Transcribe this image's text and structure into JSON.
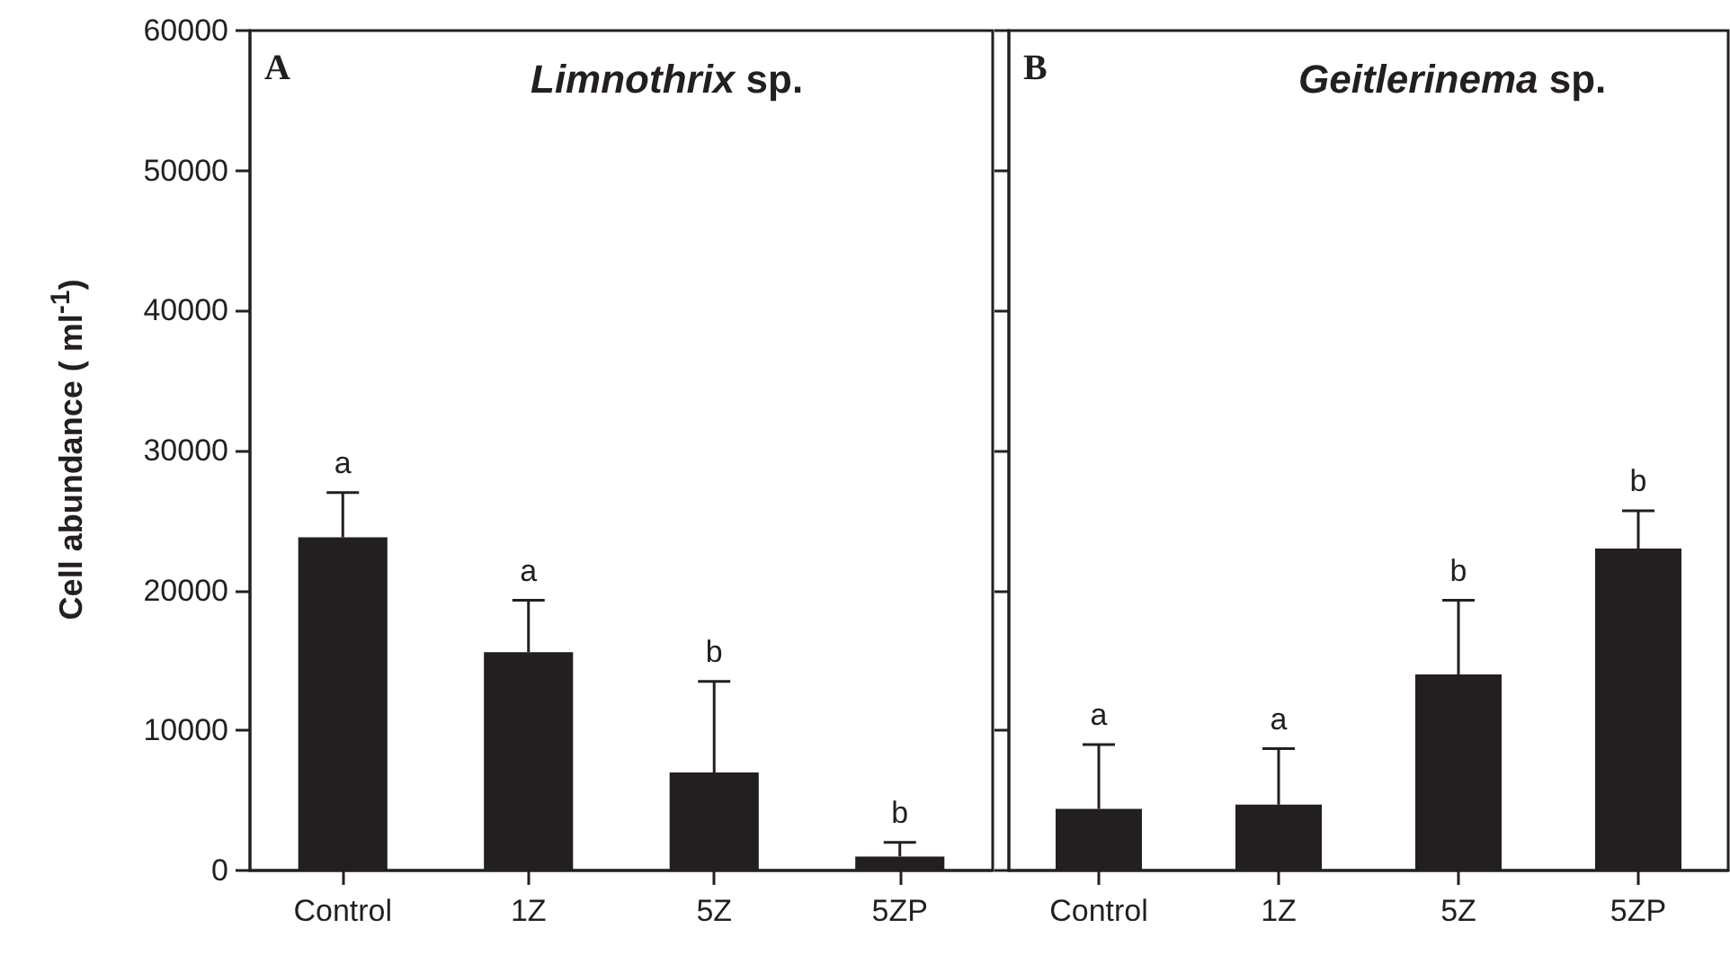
{
  "chart_data": [
    {
      "type": "bar",
      "title": "Limnothrix sp.",
      "ylabel": "Cell abundance ( ml$^{-1}$)",
      "categories": [
        "Control",
        "1Z",
        "5Z",
        "5ZP"
      ],
      "values": [
        23800,
        15600,
        7000,
        1000
      ],
      "errors": [
        [
          23800,
          27000
        ],
        [
          15600,
          19300
        ],
        [
          7000,
          13500
        ],
        [
          1000,
          2000
        ]
      ],
      "color": "#231f20",
      "ylim": [
        0,
        60000
      ],
      "yticks": [
        0,
        10000,
        20000,
        30000,
        40000,
        50000,
        60000
      ],
      "grid": false,
      "annotations": [
        "A",
        "a",
        "a",
        "b",
        "b"
      ]
    },
    {
      "type": "bar",
      "title": "Geitlerinema sp.",
      "categories": [
        "Control",
        "1Z",
        "5Z",
        "5ZP"
      ],
      "values": [
        4400,
        4700,
        14000,
        23000
      ],
      "errors": [
        [
          4400,
          9000
        ],
        [
          4700,
          8700
        ],
        [
          14000,
          19300
        ],
        [
          23000,
          25700
        ]
      ],
      "color": "#231f20",
      "ylim": [
        0,
        60000
      ],
      "yticks": [
        0,
        10000,
        20000,
        30000,
        40000,
        50000,
        60000
      ],
      "grid": false,
      "tick_labels": "x",
      "annotations": [
        "B",
        "a",
        "a",
        "b",
        "b"
      ]
    }
  ]
}
